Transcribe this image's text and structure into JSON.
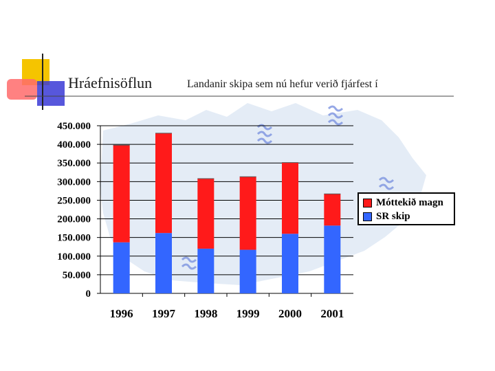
{
  "slide": {
    "title": "Hráefnisöflun",
    "subtitle": "Landanir skipa sem nú hefur verið fjárfest í"
  },
  "colors": {
    "accent_yellow": "#f5c400",
    "accent_red": "#ff3b3b",
    "accent_blue": "#2424cc",
    "map_blue": "#c9dcef",
    "logo_blue": "#7c93e0",
    "series_red": "#ff1a1a",
    "series_blue": "#3366ff"
  },
  "chart_data": {
    "type": "bar",
    "stacked": true,
    "categories": [
      "1996",
      "1997",
      "1998",
      "1999",
      "2000",
      "2001"
    ],
    "series": [
      {
        "name": "SR skip",
        "color": "#3366ff",
        "values": [
          137000,
          162000,
          120000,
          117000,
          160000,
          182000
        ]
      },
      {
        "name": "Móttekið magn",
        "color": "#ff1a1a",
        "values": [
          261000,
          268000,
          188000,
          196000,
          191000,
          85000
        ]
      }
    ],
    "ytick_labels": [
      "0",
      "50.000",
      "100.000",
      "150.000",
      "200.000",
      "250.000",
      "300.000",
      "350.000",
      "400.000",
      "450.000"
    ],
    "ytick_values": [
      0,
      50000,
      100000,
      150000,
      200000,
      250000,
      300000,
      350000,
      400000,
      450000
    ],
    "ylim": [
      0,
      450000
    ],
    "grid": true,
    "legend_position": "right",
    "legend": [
      {
        "label": "Móttekið magn",
        "color": "#ff1a1a"
      },
      {
        "label": "SR skip",
        "color": "#3366ff"
      }
    ]
  }
}
